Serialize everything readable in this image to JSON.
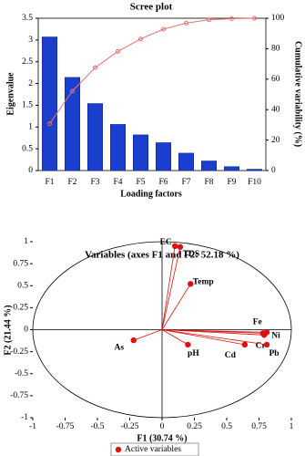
{
  "chart_data": [
    {
      "type": "bar",
      "title": "Scree plot",
      "x_label": "Loading factors",
      "y_label": "Eigenvalue",
      "y2_label": "Cumulative variability (%)",
      "categories": [
        "F1",
        "F2",
        "F3",
        "F4",
        "F5",
        "F6",
        "F7",
        "F8",
        "F9",
        "F10"
      ],
      "series": [
        {
          "type": "bar",
          "color": "#1a3fcf",
          "values": [
            3.07,
            2.14,
            1.54,
            1.06,
            0.82,
            0.64,
            0.4,
            0.22,
            0.09,
            0.03
          ]
        },
        {
          "type": "line",
          "axis": "y2",
          "color": "#e8706e",
          "values": [
            30.74,
            52.18,
            67.6,
            78.2,
            86.4,
            92.8,
            96.8,
            99.0,
            99.7,
            100
          ]
        }
      ],
      "ylim": [
        0,
        3.5
      ],
      "yticks": [
        0,
        0.5,
        1,
        1.5,
        2,
        2.5,
        3,
        3.5
      ],
      "y2lim": [
        0,
        100
      ],
      "y2ticks": [
        0,
        20,
        40,
        60,
        80,
        100
      ]
    },
    {
      "type": "scatter",
      "title": "Variables (axes F1 and F2: 52.18 %)",
      "x_label": "F1 (30.74 %)",
      "y_label": "F2 (21.44 %)",
      "series": [
        {
          "name": "Active variables",
          "color": "#e01010",
          "labels": [
            "EC",
            "TDS",
            "Temp",
            "As",
            "pH",
            "Fe",
            "Ni",
            "Cr",
            "Pb",
            "Cd"
          ],
          "x": [
            0.1,
            0.14,
            0.22,
            -0.22,
            0.2,
            0.78,
            0.81,
            0.79,
            0.81,
            0.64
          ],
          "values": [
            0.95,
            0.94,
            0.52,
            -0.12,
            -0.17,
            -0.04,
            -0.03,
            -0.06,
            -0.17,
            -0.17
          ]
        }
      ],
      "xlim": [
        -1,
        1
      ],
      "xticks": [
        -1,
        -0.75,
        -0.5,
        -0.25,
        0,
        0.25,
        0.5,
        0.75,
        1
      ],
      "ylim": [
        -1,
        1
      ],
      "yticks": [
        -1,
        -0.75,
        -0.5,
        -0.25,
        0,
        0.25,
        0.5,
        0.75,
        1
      ]
    }
  ]
}
